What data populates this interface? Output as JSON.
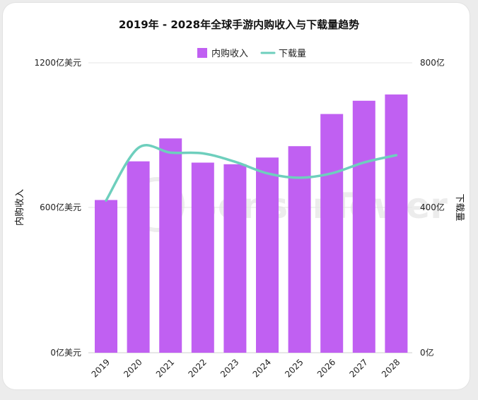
{
  "chart_data": {
    "type": "bar+line",
    "title": "2019年 - 2028年全球手游内购收入与下载量趋势",
    "categories": [
      "2019",
      "2020",
      "2021",
      "2022",
      "2023",
      "2024",
      "2025",
      "2026",
      "2027",
      "2028"
    ],
    "series": [
      {
        "name": "内购收入",
        "type": "bar",
        "axis": "left",
        "color": "#c060f2",
        "values": [
          632,
          792,
          887,
          787,
          780,
          808,
          855,
          988,
          1043,
          1069
        ]
      },
      {
        "name": "下载量",
        "type": "line",
        "axis": "right",
        "color": "#6ecfbd",
        "values": [
          420,
          565,
          552,
          550,
          527,
          495,
          483,
          495,
          525,
          545
        ]
      }
    ],
    "y_left": {
      "label": "内购收入",
      "min": 0,
      "max": 1200,
      "ticks": [
        "0亿美元",
        "600亿美元",
        "1200亿美元"
      ]
    },
    "y_right": {
      "label": "下载量",
      "min": 0,
      "max": 800,
      "ticks": [
        "0亿",
        "400亿",
        "800亿"
      ]
    },
    "watermark": "SensorTower"
  }
}
